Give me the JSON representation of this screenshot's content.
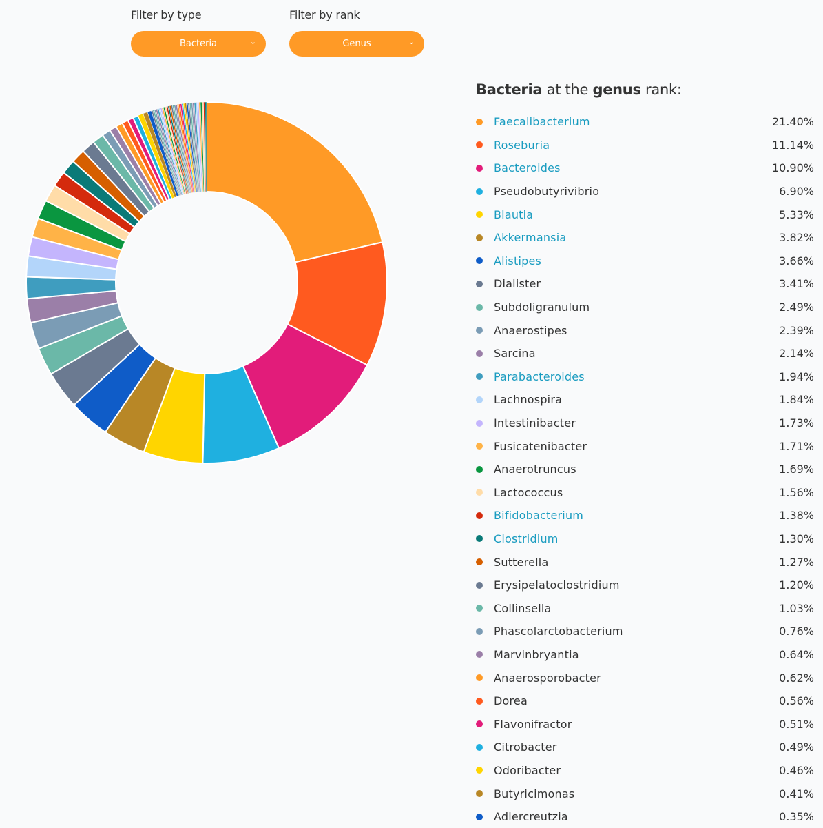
{
  "filters": {
    "type": {
      "label": "Filter by type",
      "value": "Bacteria"
    },
    "rank": {
      "label": "Filter by rank",
      "value": "Genus"
    }
  },
  "heading": {
    "type": "Bacteria",
    "middle": "at the",
    "rank": "genus",
    "suffix": "rank:"
  },
  "chart_data": {
    "type": "pie",
    "style": "donut",
    "categories": [
      "Faecalibacterium",
      "Roseburia",
      "Bacteroides",
      "Pseudobutyrivibrio",
      "Blautia",
      "Akkermansia",
      "Alistipes",
      "Dialister",
      "Subdoligranulum",
      "Anaerostipes",
      "Sarcina",
      "Parabacteroides",
      "Lachnospira",
      "Intestinibacter",
      "Fusicatenibacter",
      "Anaerotruncus",
      "Lactococcus",
      "Bifidobacterium",
      "Clostridium",
      "Sutterella",
      "Erysipelatoclostridium",
      "Collinsella",
      "Phascolarctobacterium",
      "Marvinbryantia",
      "Anaerosporobacter",
      "Dorea",
      "Flavonifractor",
      "Citrobacter",
      "Odoribacter",
      "Butyricimonas",
      "Adlercreutzia"
    ],
    "values": [
      21.4,
      11.14,
      10.9,
      6.9,
      5.33,
      3.82,
      3.66,
      3.41,
      2.49,
      2.39,
      2.14,
      1.94,
      1.84,
      1.73,
      1.71,
      1.69,
      1.56,
      1.38,
      1.3,
      1.27,
      1.2,
      1.03,
      0.76,
      0.64,
      0.62,
      0.56,
      0.51,
      0.49,
      0.46,
      0.41,
      0.35
    ],
    "labels": [
      "21.40%",
      "11.14%",
      "10.90%",
      "6.90%",
      "5.33%",
      "3.82%",
      "3.66%",
      "3.41%",
      "2.49%",
      "2.39%",
      "2.14%",
      "1.94%",
      "1.84%",
      "1.73%",
      "1.71%",
      "1.69%",
      "1.56%",
      "1.38%",
      "1.30%",
      "1.27%",
      "1.20%",
      "1.03%",
      "0.76%",
      "0.64%",
      "0.62%",
      "0.56%",
      "0.51%",
      "0.49%",
      "0.46%",
      "0.41%",
      "0.35%"
    ],
    "colors": [
      "#ff9a26",
      "#ff5a1f",
      "#e21c7a",
      "#1fb0e0",
      "#ffd500",
      "#b88726",
      "#0f5cc8",
      "#6b7a91",
      "#6bb8a8",
      "#7b9cb5",
      "#9b7fa8",
      "#3f9dbf",
      "#b3d5fa",
      "#c4b5fd",
      "#ffb347",
      "#0a9640",
      "#ffdca8",
      "#d42a0d",
      "#0a7a78",
      "#d65f00",
      "#6b7a91",
      "#6bb8a8",
      "#7b9cb5",
      "#9b7fa8",
      "#ff9a26",
      "#ff5a1f",
      "#e21c7a",
      "#1fb0e0",
      "#ffd500",
      "#b88726",
      "#0f5cc8"
    ],
    "links": [
      true,
      true,
      true,
      false,
      true,
      true,
      true,
      false,
      false,
      false,
      false,
      true,
      false,
      false,
      false,
      false,
      false,
      true,
      true,
      false,
      false,
      false,
      false,
      false,
      false,
      false,
      false,
      false,
      false,
      false,
      false
    ],
    "tail_colors": [
      "#6b7a91",
      "#6bb8a8",
      "#7b9cb5",
      "#9b7fa8",
      "#3f9dbf",
      "#b3d5fa",
      "#c4b5fd",
      "#ffb347",
      "#0a9640",
      "#ffdca8",
      "#d42a0d",
      "#0a7a78",
      "#d65f00",
      "#6b7a91",
      "#6bb8a8",
      "#7b9cb5",
      "#9b7fa8",
      "#ff9a26",
      "#ff5a1f",
      "#e21c7a",
      "#1fb0e0",
      "#ffd500",
      "#b88726",
      "#0f5cc8",
      "#6b7a91",
      "#6bb8a8",
      "#7b9cb5",
      "#9b7fa8",
      "#3f9dbf",
      "#b3d5fa",
      "#c4b5fd",
      "#ffb347",
      "#0a9640",
      "#ffdca8",
      "#d42a0d",
      "#0a7a78"
    ]
  }
}
